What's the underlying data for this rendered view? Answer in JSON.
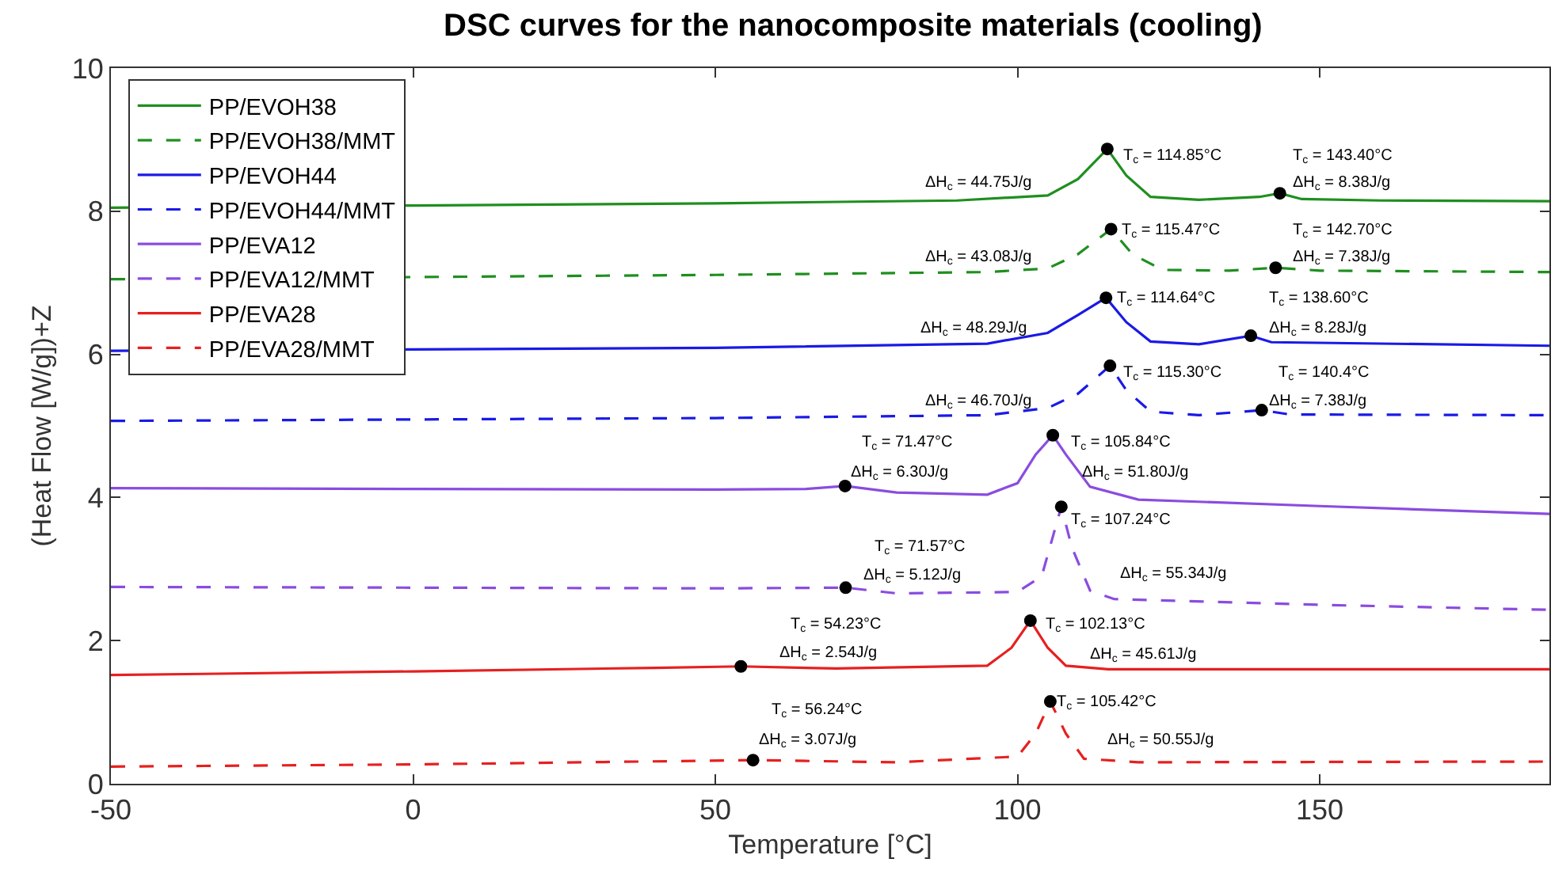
{
  "chart_data": {
    "type": "line",
    "title": "DSC curves for the nanocomposite materials (cooling)",
    "xlabel": "Temperature [°C]",
    "ylabel": "(Heat Flow [W/g])+Z",
    "xlim": [
      -50,
      188
    ],
    "xticks": [
      -50,
      0,
      50,
      100,
      150
    ],
    "ylim": [
      0,
      10
    ],
    "yticks": [
      0,
      2,
      4,
      6,
      8,
      10
    ],
    "grid": false,
    "legend": "top left",
    "marker": "none",
    "series": [
      {
        "name": "PP/EVOH38",
        "color": "#1f8f1f",
        "line_style": "solid",
        "x": [
          -50,
          0,
          50,
          90,
          105,
          110,
          114.85,
          118,
          122,
          130,
          140,
          143.4,
          147,
          160,
          188
        ],
        "values": [
          8.05,
          8.08,
          8.11,
          8.15,
          8.22,
          8.45,
          8.87,
          8.5,
          8.2,
          8.16,
          8.2,
          8.25,
          8.17,
          8.15,
          8.14
        ]
      },
      {
        "name": "PP/EVOH38/MMT",
        "color": "#1f8f1f",
        "line_style": "dashed",
        "x": [
          -50,
          0,
          50,
          95,
          105,
          110,
          115.47,
          119,
          124,
          135,
          142.7,
          150,
          188
        ],
        "values": [
          7.05,
          7.08,
          7.11,
          7.15,
          7.2,
          7.4,
          7.75,
          7.4,
          7.18,
          7.17,
          7.21,
          7.17,
          7.15
        ]
      },
      {
        "name": "PP/EVOH44",
        "color": "#1a1ae6",
        "line_style": "solid",
        "x": [
          -50,
          0,
          50,
          95,
          105,
          110,
          114.64,
          118,
          122,
          130,
          138.6,
          142,
          188
        ],
        "values": [
          6.05,
          6.07,
          6.09,
          6.15,
          6.3,
          6.55,
          6.79,
          6.45,
          6.18,
          6.14,
          6.26,
          6.17,
          6.12
        ]
      },
      {
        "name": "PP/EVOH44/MMT",
        "color": "#1a1ae6",
        "line_style": "dashed",
        "x": [
          -50,
          0,
          50,
          95,
          105,
          110,
          115.3,
          118,
          122,
          130,
          140.4,
          145,
          188
        ],
        "values": [
          5.07,
          5.09,
          5.11,
          5.15,
          5.25,
          5.45,
          5.84,
          5.5,
          5.2,
          5.15,
          5.22,
          5.16,
          5.15
        ]
      },
      {
        "name": "PP/EVA12",
        "color": "#8a4ce0",
        "line_style": "solid",
        "x": [
          -50,
          0,
          50,
          65,
          71.47,
          80,
          95,
          100,
          103,
          105.84,
          108,
          112,
          120,
          150,
          188
        ],
        "values": [
          4.13,
          4.12,
          4.11,
          4.12,
          4.16,
          4.07,
          4.04,
          4.2,
          4.6,
          4.87,
          4.6,
          4.15,
          3.97,
          3.88,
          3.77
        ]
      },
      {
        "name": "PP/EVA12/MMT",
        "color": "#8a4ce0",
        "line_style": "dashed",
        "x": [
          -50,
          0,
          50,
          71.57,
          80,
          100,
          104,
          106,
          107.24,
          109,
          112,
          116,
          150,
          188
        ],
        "values": [
          2.75,
          2.74,
          2.73,
          2.74,
          2.66,
          2.68,
          2.9,
          3.5,
          3.87,
          3.3,
          2.7,
          2.58,
          2.5,
          2.43
        ]
      },
      {
        "name": "PP/EVA28",
        "color": "#e62020",
        "line_style": "solid",
        "x": [
          -50,
          0,
          40,
          54.23,
          70,
          95,
          99,
          102.13,
          105,
          108,
          115,
          188
        ],
        "values": [
          1.52,
          1.57,
          1.62,
          1.64,
          1.61,
          1.65,
          1.9,
          2.28,
          1.9,
          1.65,
          1.6,
          1.6
        ]
      },
      {
        "name": "PP/EVA28/MMT",
        "color": "#e62020",
        "line_style": "dashed",
        "x": [
          -50,
          0,
          56.24,
          80,
          100,
          103,
          105.42,
          108,
          111,
          120,
          188
        ],
        "values": [
          0.24,
          0.27,
          0.33,
          0.3,
          0.38,
          0.7,
          1.15,
          0.7,
          0.35,
          0.3,
          0.31
        ]
      },
      {
        "type": "scatter",
        "color": "#000000",
        "marker": "circle",
        "x": [
          114.85,
          143.4,
          115.47,
          142.7,
          114.64,
          138.6,
          115.3,
          140.4,
          71.47,
          105.84,
          71.57,
          107.24,
          54.23,
          102.13,
          56.24,
          105.42
        ],
        "values": [
          8.87,
          8.25,
          7.75,
          7.21,
          6.79,
          6.26,
          5.84,
          5.22,
          4.16,
          4.87,
          2.74,
          3.87,
          1.64,
          2.28,
          0.33,
          1.15
        ]
      }
    ],
    "annotations": [
      "ΔH$_{c}$ = 44.75J/g",
      {
        "text": "T$_{c}$ = 114.85°C",
        "x": 114.85,
        "y": 8.87
      },
      {
        "text": "T$_{c}$ = 143.40°C",
        "x": 143.4,
        "y": 8.25
      },
      {
        "text": "ΔH$_{c}$ = 8.38J/g",
        "x": 143.4,
        "y": 8.25
      },
      "ΔH$_{c}$ = 43.08J/g",
      {
        "text": "T$_{c}$ = 115.47°C",
        "x": 115.47,
        "y": 7.75
      },
      {
        "text": "T$_{c}$ = 142.70°C",
        "x": 142.7,
        "y": 7.21
      },
      {
        "text": "ΔH$_{c}$ = 7.38J/g",
        "x": 142.7,
        "y": 7.21
      },
      "ΔH$_{c}$ = 48.29J/g",
      {
        "text": "T$_{c}$ = 114.64°C",
        "x": 114.64,
        "y": 6.79
      },
      {
        "text": "T$_{c}$ = 138.60°C",
        "x": 138.6,
        "y": 6.26
      },
      {
        "text": "ΔH$_{c}$ = 8.28J/g",
        "x": 138.6,
        "y": 6.26
      },
      "ΔH$_{c}$ = 46.70J/g",
      {
        "text": "T$_{c}$ = 115.30°C",
        "x": 115.3,
        "y": 5.84
      },
      {
        "text": "T$_{c}$ = 140.4°C",
        "x": 140.4,
        "y": 5.22
      },
      {
        "text": "ΔH$_{c}$ = 7.38J/g",
        "x": 140.4,
        "y": 5.22
      },
      {
        "text": "T$_{c}$ = 71.47°C",
        "x": 71.47,
        "y": 4.16
      },
      {
        "text": "ΔH$_{c}$ = 6.30J/g",
        "x": 71.47,
        "y": 4.16
      },
      {
        "text": "T$_{c}$ = 105.84°C",
        "x": 105.84,
        "y": 4.87
      },
      {
        "text": "ΔH$_{c}$ = 51.80J/g",
        "x": 105.84,
        "y": 4.87
      },
      {
        "text": "T$_{c}$ = 107.24°C",
        "x": 107.24,
        "y": 3.87
      },
      {
        "text": "T$_{c}$ = 71.57°C",
        "x": 71.57,
        "y": 2.74
      },
      {
        "text": "ΔH$_{c}$ = 5.12J/g",
        "x": 71.57,
        "y": 2.74
      },
      "ΔH$_{c}$ = 55.34J/g",
      "T$_{c}$ = 54.23°C",
      {
        "text": "ΔH$_{c}$ = 2.54J/g",
        "x": 54.23,
        "y": 1.64
      },
      {
        "text": "T$_{c}$ = 102.13°C",
        "x": 102.13,
        "y": 2.28
      },
      "ΔH$_{c}$ = 45.61J/g",
      {
        "text": "T$_{c}$ = 56.24°C",
        "x": 56.24,
        "y": 0.33
      },
      {
        "text": "ΔH$_{c}$ = 3.07J/g",
        "x": 56.24,
        "y": 0.33
      },
      {
        "text": "T$_{c}$ = 105.42°C",
        "x": 105.42,
        "y": 1.15
      },
      "ΔH$_{c}$ = 50.55J/g"
    ]
  }
}
